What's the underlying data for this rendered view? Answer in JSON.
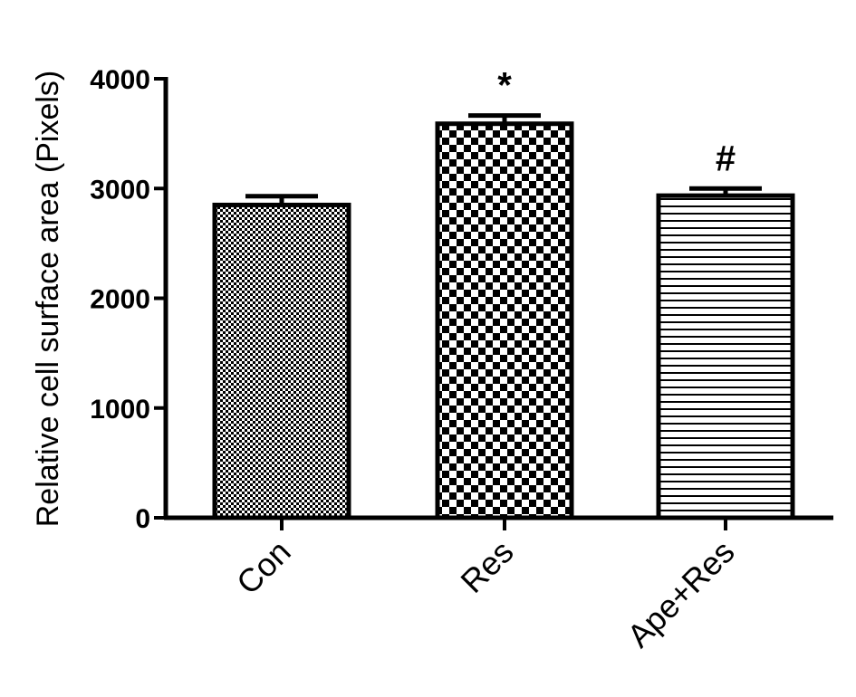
{
  "chart_data": {
    "type": "bar",
    "title": "",
    "xlabel": "",
    "ylabel": "Relative cell surface area (Pixels)",
    "categories": [
      "Con",
      "Res",
      "Ape+Res"
    ],
    "values": [
      2850,
      3590,
      2935
    ],
    "errors": [
      80,
      75,
      65
    ],
    "annotations": [
      "",
      "*",
      "#"
    ],
    "ylim": [
      0,
      4000
    ],
    "yticks": [
      0,
      1000,
      2000,
      3000,
      4000
    ],
    "ytick_labels": [
      "0",
      "1000",
      "2000",
      "3000",
      "4000"
    ],
    "grid": false,
    "legend": "none",
    "fill_patterns": [
      "fine-checker",
      "checkerboard",
      "horizontal-lines"
    ],
    "colors": {
      "stroke": "#000000",
      "fill": "#000000",
      "background": "#ffffff"
    }
  }
}
